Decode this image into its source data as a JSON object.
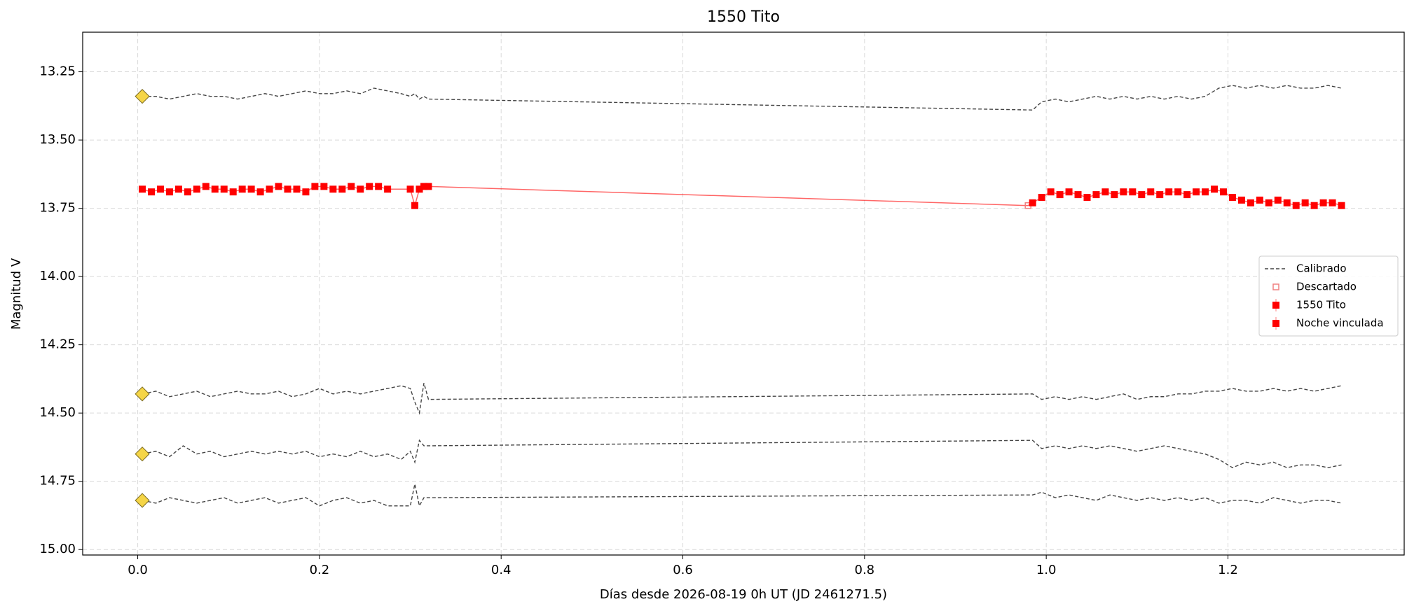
{
  "chart_data": {
    "type": "line",
    "title": "1550 Tito",
    "xlabel": "Días desde 2026-08-19 0h UT (JD 2461271.5)",
    "ylabel": "Magnitud V",
    "xlim": [
      -0.0606,
      1.394
    ],
    "ylim": [
      15.02,
      13.105
    ],
    "y_inverted": true,
    "grid": true,
    "legend": "right",
    "xticks": [
      {
        "value": 0,
        "label": "0.0"
      },
      0.2,
      0.4,
      0.6,
      0.8,
      {
        "value": 1,
        "label": "1.0"
      },
      1.2
    ],
    "yticks": [
      13.25,
      {
        "value": 13.5,
        "label": "13.50"
      },
      13.75,
      {
        "value": 14,
        "label": "14.00"
      },
      14.25,
      {
        "value": 14.5,
        "label": "14.50"
      },
      14.75,
      {
        "value": 15,
        "label": "15.00"
      }
    ],
    "series": [
      {
        "name": "Calibrado",
        "style": "dashed",
        "color": "#444444",
        "start_marker_color": "#f5d547",
        "x": [
          0.005,
          0.02,
          0.035,
          0.05,
          0.065,
          0.08,
          0.095,
          0.11,
          0.125,
          0.14,
          0.155,
          0.17,
          0.185,
          0.2,
          0.215,
          0.23,
          0.245,
          0.26,
          0.275,
          0.29,
          0.3,
          0.305,
          0.31,
          0.315,
          0.32,
          0.985,
          0.995,
          1.01,
          1.025,
          1.04,
          1.055,
          1.07,
          1.085,
          1.1,
          1.115,
          1.13,
          1.145,
          1.16,
          1.175,
          1.19,
          1.205,
          1.22,
          1.235,
          1.25,
          1.265,
          1.28,
          1.295,
          1.31,
          1.325
        ],
        "lines": [
          [
            13.34,
            13.34,
            13.35,
            13.34,
            13.33,
            13.34,
            13.34,
            13.35,
            13.34,
            13.33,
            13.34,
            13.33,
            13.32,
            13.33,
            13.33,
            13.32,
            13.33,
            13.31,
            13.32,
            13.33,
            13.34,
            13.33,
            13.35,
            13.34,
            13.35,
            13.39,
            13.36,
            13.35,
            13.36,
            13.35,
            13.34,
            13.35,
            13.34,
            13.35,
            13.34,
            13.35,
            13.34,
            13.35,
            13.34,
            13.31,
            13.3,
            13.31,
            13.3,
            13.31,
            13.3,
            13.31,
            13.31,
            13.3,
            13.31
          ],
          [
            14.43,
            14.42,
            14.44,
            14.43,
            14.42,
            14.44,
            14.43,
            14.42,
            14.43,
            14.43,
            14.42,
            14.44,
            14.43,
            14.41,
            14.43,
            14.42,
            14.43,
            14.42,
            14.41,
            14.4,
            14.41,
            14.46,
            14.5,
            14.39,
            14.45,
            14.43,
            14.45,
            14.44,
            14.45,
            14.44,
            14.45,
            14.44,
            14.43,
            14.45,
            14.44,
            14.44,
            14.43,
            14.43,
            14.42,
            14.42,
            14.41,
            14.42,
            14.42,
            14.41,
            14.42,
            14.41,
            14.42,
            14.41,
            14.4
          ],
          [
            14.65,
            14.64,
            14.66,
            14.62,
            14.65,
            14.64,
            14.66,
            14.65,
            14.64,
            14.65,
            14.64,
            14.65,
            14.64,
            14.66,
            14.65,
            14.66,
            14.64,
            14.66,
            14.65,
            14.67,
            14.64,
            14.68,
            14.6,
            14.62,
            14.62,
            14.6,
            14.63,
            14.62,
            14.63,
            14.62,
            14.63,
            14.62,
            14.63,
            14.64,
            14.63,
            14.62,
            14.63,
            14.64,
            14.65,
            14.67,
            14.7,
            14.68,
            14.69,
            14.68,
            14.7,
            14.69,
            14.69,
            14.7,
            14.69
          ],
          [
            14.82,
            14.83,
            14.81,
            14.82,
            14.83,
            14.82,
            14.81,
            14.83,
            14.82,
            14.81,
            14.83,
            14.82,
            14.81,
            14.84,
            14.82,
            14.81,
            14.83,
            14.82,
            14.84,
            14.84,
            14.84,
            14.76,
            14.84,
            14.81,
            14.81,
            14.8,
            14.79,
            14.81,
            14.8,
            14.81,
            14.82,
            14.8,
            14.81,
            14.82,
            14.81,
            14.82,
            14.81,
            14.82,
            14.81,
            14.83,
            14.82,
            14.82,
            14.83,
            14.81,
            14.82,
            14.83,
            14.82,
            14.82,
            14.83
          ]
        ]
      },
      {
        "name": "Descartado",
        "style": "hollow",
        "color": "#f08080",
        "x": [
          0.98
        ],
        "values": [
          13.74
        ]
      },
      {
        "name": "1550 Tito",
        "style": "square",
        "color": "#ff0000",
        "x": [
          0.005,
          0.015,
          0.025,
          0.035,
          0.045,
          0.055,
          0.065,
          0.075,
          0.085,
          0.095,
          0.105,
          0.115,
          0.125,
          0.135,
          0.145,
          0.155,
          0.165,
          0.175,
          0.185,
          0.195,
          0.205,
          0.215,
          0.225,
          0.235,
          0.245,
          0.255,
          0.265,
          0.275,
          0.3,
          0.305,
          0.31,
          0.315,
          0.32
        ],
        "values": [
          13.68,
          13.69,
          13.68,
          13.69,
          13.68,
          13.69,
          13.68,
          13.67,
          13.68,
          13.68,
          13.69,
          13.68,
          13.68,
          13.69,
          13.68,
          13.67,
          13.68,
          13.68,
          13.69,
          13.67,
          13.67,
          13.68,
          13.68,
          13.67,
          13.68,
          13.67,
          13.67,
          13.68,
          13.68,
          13.74,
          13.68,
          13.67,
          13.67
        ]
      },
      {
        "name": "Noche vinculada",
        "style": "square",
        "color": "#ff0000",
        "x": [
          0.985,
          0.995,
          1.005,
          1.015,
          1.025,
          1.035,
          1.045,
          1.055,
          1.065,
          1.075,
          1.085,
          1.095,
          1.105,
          1.115,
          1.125,
          1.135,
          1.145,
          1.155,
          1.165,
          1.175,
          1.185,
          1.195,
          1.205,
          1.215,
          1.225,
          1.235,
          1.245,
          1.255,
          1.265,
          1.275,
          1.285,
          1.295,
          1.305,
          1.315,
          1.325
        ],
        "values": [
          13.73,
          13.71,
          13.69,
          13.7,
          13.69,
          13.7,
          13.71,
          13.7,
          13.69,
          13.7,
          13.69,
          13.69,
          13.7,
          13.69,
          13.7,
          13.69,
          13.69,
          13.7,
          13.69,
          13.69,
          13.68,
          13.69,
          13.71,
          13.72,
          13.73,
          13.72,
          13.73,
          13.72,
          13.73,
          13.74,
          13.73,
          13.74,
          13.73,
          13.73,
          13.74
        ]
      }
    ]
  }
}
